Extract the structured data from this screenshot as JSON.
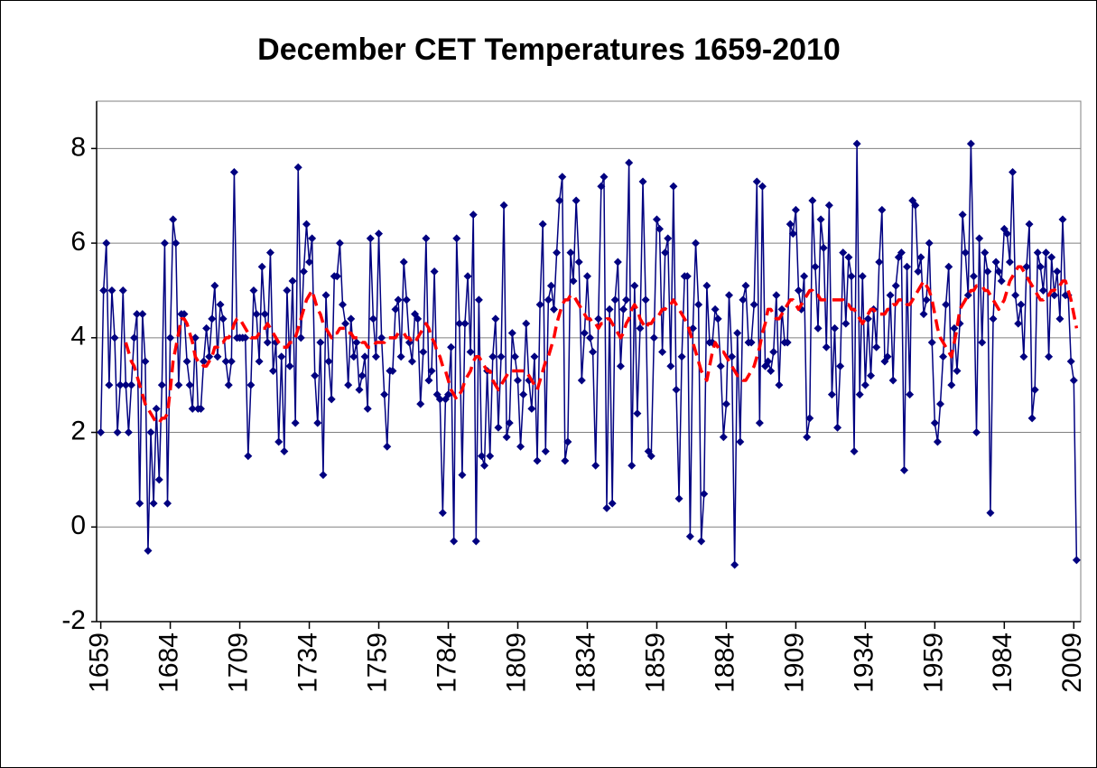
{
  "chart_data": {
    "type": "line",
    "title": "December CET Temperatures 1659-2010",
    "x": [
      1659,
      1660,
      1661,
      1662,
      1663,
      1664,
      1665,
      1666,
      1667,
      1668,
      1669,
      1670,
      1671,
      1672,
      1673,
      1674,
      1675,
      1676,
      1677,
      1678,
      1679,
      1680,
      1681,
      1682,
      1683,
      1684,
      1685,
      1686,
      1687,
      1688,
      1689,
      1690,
      1691,
      1692,
      1693,
      1694,
      1695,
      1696,
      1697,
      1698,
      1699,
      1700,
      1701,
      1702,
      1703,
      1704,
      1705,
      1706,
      1707,
      1708,
      1709,
      1710,
      1711,
      1712,
      1713,
      1714,
      1715,
      1716,
      1717,
      1718,
      1719,
      1720,
      1721,
      1722,
      1723,
      1724,
      1725,
      1726,
      1727,
      1728,
      1729,
      1730,
      1731,
      1732,
      1733,
      1734,
      1735,
      1736,
      1737,
      1738,
      1739,
      1740,
      1741,
      1742,
      1743,
      1744,
      1745,
      1746,
      1747,
      1748,
      1749,
      1750,
      1751,
      1752,
      1753,
      1754,
      1755,
      1756,
      1757,
      1758,
      1759,
      1760,
      1761,
      1762,
      1763,
      1764,
      1765,
      1766,
      1767,
      1768,
      1769,
      1770,
      1771,
      1772,
      1773,
      1774,
      1775,
      1776,
      1777,
      1778,
      1779,
      1780,
      1781,
      1782,
      1783,
      1784,
      1785,
      1786,
      1787,
      1788,
      1789,
      1790,
      1791,
      1792,
      1793,
      1794,
      1795,
      1796,
      1797,
      1798,
      1799,
      1800,
      1801,
      1802,
      1803,
      1804,
      1805,
      1806,
      1807,
      1808,
      1809,
      1810,
      1811,
      1812,
      1813,
      1814,
      1815,
      1816,
      1817,
      1818,
      1819,
      1820,
      1821,
      1822,
      1823,
      1824,
      1825,
      1826,
      1827,
      1828,
      1829,
      1830,
      1831,
      1832,
      1833,
      1834,
      1835,
      1836,
      1837,
      1838,
      1839,
      1840,
      1841,
      1842,
      1843,
      1844,
      1845,
      1846,
      1847,
      1848,
      1849,
      1850,
      1851,
      1852,
      1853,
      1854,
      1855,
      1856,
      1857,
      1858,
      1859,
      1860,
      1861,
      1862,
      1863,
      1864,
      1865,
      1866,
      1867,
      1868,
      1869,
      1870,
      1871,
      1872,
      1873,
      1874,
      1875,
      1876,
      1877,
      1878,
      1879,
      1880,
      1881,
      1882,
      1883,
      1884,
      1885,
      1886,
      1887,
      1888,
      1889,
      1890,
      1891,
      1892,
      1893,
      1894,
      1895,
      1896,
      1897,
      1898,
      1899,
      1900,
      1901,
      1902,
      1903,
      1904,
      1905,
      1906,
      1907,
      1908,
      1909,
      1910,
      1911,
      1912,
      1913,
      1914,
      1915,
      1916,
      1917,
      1918,
      1919,
      1920,
      1921,
      1922,
      1923,
      1924,
      1925,
      1926,
      1927,
      1928,
      1929,
      1930,
      1931,
      1932,
      1933,
      1934,
      1935,
      1936,
      1937,
      1938,
      1939,
      1940,
      1941,
      1942,
      1943,
      1944,
      1945,
      1946,
      1947,
      1948,
      1949,
      1950,
      1951,
      1952,
      1953,
      1954,
      1955,
      1956,
      1957,
      1958,
      1959,
      1960,
      1961,
      1962,
      1963,
      1964,
      1965,
      1966,
      1967,
      1968,
      1969,
      1970,
      1971,
      1972,
      1973,
      1974,
      1975,
      1976,
      1977,
      1978,
      1979,
      1980,
      1981,
      1982,
      1983,
      1984,
      1985,
      1986,
      1987,
      1988,
      1989,
      1990,
      1991,
      1992,
      1993,
      1994,
      1995,
      1996,
      1997,
      1998,
      1999,
      2000,
      2001,
      2002,
      2003,
      2004,
      2005,
      2006,
      2007,
      2008,
      2009,
      2010
    ],
    "series": [
      {
        "color": "#000080",
        "marker": "diamond",
        "values": [
          2,
          5,
          6,
          3,
          5,
          4,
          2,
          3,
          5,
          3,
          2,
          3,
          4,
          4.5,
          0.5,
          4.5,
          3.5,
          -0.5,
          2,
          0.5,
          2.5,
          1,
          3,
          6,
          0.5,
          4,
          6.5,
          6,
          3,
          4.5,
          4.5,
          3.5,
          3,
          2.5,
          4,
          2.5,
          2.5,
          3.5,
          4.2,
          3.6,
          4.4,
          5.1,
          3.6,
          4.7,
          4.4,
          3.5,
          3,
          3.5,
          7.5,
          4,
          4,
          4,
          4,
          1.5,
          3,
          5,
          4.5,
          3.5,
          5.5,
          4.5,
          3.9,
          5.8,
          3.3,
          3.9,
          1.8,
          3.6,
          1.6,
          5,
          3.4,
          5.2,
          2.2,
          7.6,
          4,
          5.4,
          6.4,
          5.6,
          6.1,
          3.2,
          2.2,
          3.9,
          1.1,
          4.9,
          3.5,
          2.7,
          5.3,
          5.3,
          6,
          4.7,
          4.3,
          3,
          4.4,
          3.6,
          3.9,
          2.9,
          3.2,
          3.6,
          2.5,
          6.1,
          4.4,
          3.6,
          6.2,
          4,
          2.8,
          1.7,
          3.3,
          3.3,
          4.6,
          4.8,
          3.6,
          5.6,
          4.8,
          3.9,
          3.5,
          4.5,
          4.4,
          2.6,
          3.7,
          6.1,
          3.1,
          3.3,
          5.4,
          2.8,
          2.7,
          0.3,
          2.7,
          2.8,
          3.8,
          -0.3,
          6.1,
          4.3,
          1.1,
          4.3,
          5.3,
          3.7,
          6.6,
          -0.3,
          4.8,
          1.5,
          1.3,
          3.3,
          1.5,
          3.6,
          4.4,
          2.1,
          3.6,
          6.8,
          1.9,
          2.2,
          4.1,
          3.6,
          3.1,
          1.7,
          2.8,
          4.3,
          3.1,
          2.5,
          3.6,
          1.4,
          4.7,
          6.4,
          1.6,
          4.8,
          5.1,
          4.6,
          5.8,
          6.9,
          7.4,
          1.4,
          1.8,
          5.8,
          5.2,
          6.9,
          5.6,
          3.1,
          4.1,
          5.3,
          4,
          3.7,
          1.3,
          4.4,
          7.2,
          7.4,
          0.4,
          4.6,
          0.5,
          4.8,
          5.6,
          3.4,
          4.6,
          4.8,
          7.7,
          1.3,
          5.1,
          2.4,
          4.2,
          7.3,
          4.8,
          1.6,
          1.5,
          4,
          6.5,
          6.3,
          3.7,
          5.8,
          6.1,
          3.4,
          7.2,
          2.9,
          0.6,
          3.6,
          5.3,
          5.3,
          -0.2,
          4.2,
          6,
          4.7,
          -0.3,
          0.7,
          5.1,
          3.9,
          3.9,
          4.6,
          4.4,
          3.4,
          1.9,
          2.6,
          4.9,
          3.6,
          -0.8,
          4.1,
          1.8,
          4.8,
          5.1,
          3.9,
          3.9,
          4.7,
          7.3,
          2.2,
          7.2,
          3.4,
          3.5,
          3.3,
          3.7,
          4.9,
          3,
          4.6,
          3.9,
          3.9,
          6.4,
          6.2,
          6.7,
          5,
          4.6,
          5.3,
          1.9,
          2.3,
          6.9,
          5.5,
          4.2,
          6.5,
          5.9,
          3.8,
          6.8,
          2.8,
          4.2,
          2.1,
          3.4,
          5.8,
          4.3,
          5.7,
          5.3,
          1.6,
          8.1,
          2.8,
          5.3,
          3,
          4.4,
          3.2,
          4.6,
          3.8,
          5.6,
          6.7,
          3.5,
          3.6,
          4.9,
          3.1,
          5.1,
          5.7,
          5.8,
          1.2,
          5.5,
          2.8,
          6.9,
          6.8,
          5.4,
          5.7,
          4.5,
          4.8,
          6,
          3.9,
          2.2,
          1.8,
          2.6,
          3.6,
          4.7,
          5.5,
          3,
          4.2,
          3.3,
          4.3,
          6.6,
          5.8,
          4.9,
          8.1,
          5.3,
          2,
          6.1,
          3.9,
          5.8,
          5.4,
          0.3,
          4.4,
          5.6,
          5.4,
          5.2,
          6.3,
          6.2,
          5.6,
          7.5,
          4.9,
          4.3,
          4.7,
          3.6,
          5.5,
          6.4,
          2.3,
          2.9,
          5.8,
          5.5,
          5,
          5.8,
          3.6,
          5.7,
          4.9,
          5.4,
          4.4,
          6.5,
          4.9,
          4.9,
          3.5,
          3.1,
          -0.7
        ]
      },
      {
        "color": "#ff0000",
        "dashed": true,
        "values": [
          null,
          null,
          null,
          null,
          null,
          null,
          null,
          null,
          null,
          3.9,
          3.7,
          3.5,
          3.4,
          3.2,
          3.0,
          2.8,
          2.6,
          2.5,
          2.4,
          2.3,
          2.2,
          2.2,
          2.3,
          2.3,
          2.4,
          2.9,
          3.5,
          3.8,
          4.1,
          4.4,
          4.4,
          4.3,
          4.1,
          3.9,
          3.6,
          3.5,
          3.5,
          3.4,
          3.4,
          3.5,
          3.6,
          3.8,
          3.8,
          3.9,
          3.9,
          4.0,
          4.0,
          4.1,
          4.3,
          4.4,
          4.4,
          4.3,
          4.2,
          4.1,
          4.0,
          4.0,
          4.0,
          4.1,
          4.2,
          4.2,
          4.3,
          4.2,
          4.1,
          4.0,
          3.9,
          3.8,
          3.8,
          3.8,
          3.9,
          3.9,
          4.0,
          4.2,
          4.4,
          4.6,
          4.8,
          4.9,
          5.0,
          4.8,
          4.6,
          4.5,
          4.3,
          4.2,
          4.1,
          4.0,
          4.1,
          4.1,
          4.2,
          4.2,
          4.2,
          4.1,
          4.1,
          4.0,
          4.0,
          4.0,
          3.9,
          3.9,
          3.8,
          3.8,
          3.8,
          3.9,
          3.9,
          3.9,
          3.9,
          4.0,
          4.0,
          4.0,
          4.0,
          4.1,
          4.1,
          4.1,
          4.0,
          4.0,
          3.9,
          3.9,
          4.0,
          4.1,
          4.2,
          4.3,
          4.2,
          4.0,
          3.9,
          3.7,
          3.6,
          3.4,
          3.3,
          3.1,
          2.9,
          2.8,
          2.7,
          2.8,
          2.9,
          3.1,
          3.2,
          3.3,
          3.5,
          3.6,
          3.6,
          3.5,
          3.4,
          3.3,
          3.3,
          3.1,
          3.0,
          2.9,
          3.0,
          3.1,
          3.2,
          3.3,
          3.3,
          3.3,
          3.3,
          3.3,
          3.3,
          3.3,
          3.2,
          3.1,
          3.0,
          2.9,
          3.1,
          3.3,
          3.5,
          3.6,
          3.8,
          4.0,
          4.3,
          4.5,
          4.7,
          4.8,
          4.8,
          4.9,
          4.9,
          4.8,
          4.7,
          4.6,
          4.5,
          4.4,
          4.4,
          4.3,
          4.3,
          4.2,
          4.3,
          4.3,
          4.4,
          4.4,
          4.3,
          4.2,
          4.1,
          4.0,
          4.1,
          4.3,
          4.4,
          4.6,
          4.7,
          4.6,
          4.4,
          4.3,
          4.2,
          4.3,
          4.3,
          4.4,
          4.4,
          4.5,
          4.6,
          4.6,
          4.7,
          4.7,
          4.8,
          4.7,
          4.6,
          4.5,
          4.4,
          4.3,
          4.1,
          3.9,
          3.7,
          3.5,
          3.3,
          3.2,
          3.1,
          3.4,
          3.7,
          3.9,
          3.8,
          3.7,
          3.7,
          3.6,
          3.5,
          3.4,
          3.3,
          3.2,
          3.2,
          3.1,
          3.1,
          3.2,
          3.3,
          3.4,
          3.6,
          3.8,
          4.1,
          4.3,
          4.6,
          4.6,
          4.5,
          4.4,
          4.4,
          4.5,
          4.6,
          4.7,
          4.8,
          4.8,
          4.7,
          4.6,
          4.7,
          4.8,
          4.9,
          5.0,
          5.0,
          4.9,
          4.9,
          4.8,
          4.8,
          4.8,
          4.8,
          4.8,
          4.8,
          4.8,
          4.8,
          4.8,
          4.7,
          4.7,
          4.6,
          4.6,
          4.5,
          4.4,
          4.3,
          4.4,
          4.5,
          4.6,
          4.6,
          4.5,
          4.5,
          4.5,
          4.5,
          4.6,
          4.6,
          4.7,
          4.7,
          4.8,
          4.8,
          4.8,
          4.7,
          4.7,
          4.8,
          4.9,
          5.0,
          5.1,
          5.2,
          5.1,
          5.0,
          4.8,
          4.5,
          4.2,
          4.0,
          3.9,
          3.8,
          3.7,
          3.6,
          3.9,
          4.2,
          4.6,
          4.7,
          4.8,
          4.9,
          5.0,
          5.0,
          5.1,
          5.1,
          5.1,
          5.0,
          5.0,
          4.9,
          4.8,
          4.7,
          4.6,
          4.7,
          4.8,
          5.0,
          5.2,
          5.3,
          5.4,
          5.5,
          5.5,
          5.4,
          5.3,
          5.2,
          5.1,
          5.0,
          4.9,
          4.8,
          4.8,
          4.9,
          4.9,
          5.0,
          5.0,
          5.1,
          5.1,
          5.2,
          5.2,
          5.0,
          4.8,
          4.5,
          4.2
        ]
      }
    ],
    "xlim": [
      1657.5,
      2011.5
    ],
    "xticks": [
      1659,
      1684,
      1709,
      1734,
      1759,
      1784,
      1809,
      1834,
      1859,
      1884,
      1909,
      1934,
      1959,
      1984,
      2009
    ],
    "ylim": [
      -2,
      9
    ],
    "yticks": [
      -2,
      0,
      2,
      4,
      6,
      8
    ],
    "grid": true
  }
}
